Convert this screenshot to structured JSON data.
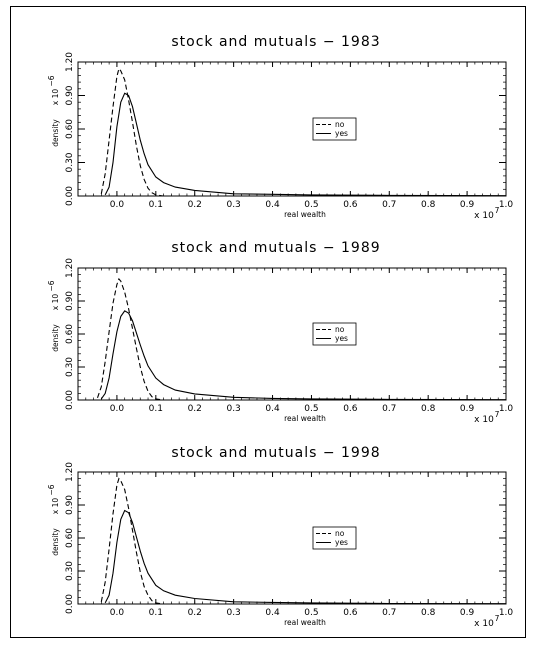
{
  "chart_data": [
    {
      "type": "line",
      "title": "stock and mutuals − 1983",
      "xlabel": "real wealth",
      "ylabel": "density",
      "y_multiplier": "x 10",
      "y_exponent": "−6",
      "x_multiplier": "x 10",
      "x_exponent": "7",
      "xlim": [
        -0.1,
        1.0
      ],
      "ylim": [
        0.0,
        1.2
      ],
      "xticks": [
        "0.0",
        "0.1",
        "0.2",
        "0.3",
        "0.4",
        "0.5",
        "0.6",
        "0.7",
        "0.8",
        "0.9",
        "1.0"
      ],
      "yticks": [
        "0.00",
        "0.30",
        "0.60",
        "0.90",
        "1.20"
      ],
      "legend": {
        "placement": "center-right"
      },
      "series": [
        {
          "name": "no",
          "style": "dashed",
          "x": [
            -0.04,
            -0.03,
            -0.02,
            -0.01,
            0.0,
            0.005,
            0.01,
            0.02,
            0.03,
            0.04,
            0.05,
            0.06,
            0.07,
            0.08,
            0.09,
            0.1,
            0.12
          ],
          "y": [
            0.02,
            0.2,
            0.5,
            0.8,
            1.07,
            1.14,
            1.12,
            1.04,
            0.86,
            0.66,
            0.45,
            0.27,
            0.15,
            0.07,
            0.03,
            0.01,
            0.0
          ]
        },
        {
          "name": "yes",
          "style": "solid",
          "x": [
            -0.03,
            -0.02,
            -0.01,
            0.0,
            0.01,
            0.02,
            0.03,
            0.04,
            0.05,
            0.06,
            0.07,
            0.08,
            0.1,
            0.12,
            0.15,
            0.2,
            0.3,
            0.4,
            0.5,
            0.7,
            1.0
          ],
          "y": [
            0.01,
            0.08,
            0.3,
            0.62,
            0.84,
            0.92,
            0.9,
            0.8,
            0.65,
            0.5,
            0.38,
            0.28,
            0.17,
            0.12,
            0.08,
            0.05,
            0.02,
            0.015,
            0.01,
            0.005,
            0.003
          ]
        }
      ]
    },
    {
      "type": "line",
      "title": "stock and mutuals − 1989",
      "xlabel": "real wealth",
      "ylabel": "density",
      "y_multiplier": "x 10",
      "y_exponent": "−6",
      "x_multiplier": "x 10",
      "x_exponent": "7",
      "xlim": [
        -0.1,
        1.0
      ],
      "ylim": [
        0.0,
        1.2
      ],
      "xticks": [
        "0.0",
        "0.1",
        "0.2",
        "0.3",
        "0.4",
        "0.5",
        "0.6",
        "0.7",
        "0.8",
        "0.9",
        "1.0"
      ],
      "yticks": [
        "0.00",
        "0.30",
        "0.60",
        "0.90",
        "1.20"
      ],
      "legend": {
        "placement": "center-right"
      },
      "series": [
        {
          "name": "no",
          "style": "dashed",
          "x": [
            -0.05,
            -0.04,
            -0.03,
            -0.02,
            -0.01,
            0.0,
            0.005,
            0.01,
            0.02,
            0.03,
            0.04,
            0.05,
            0.06,
            0.07,
            0.08,
            0.09,
            0.1,
            0.12
          ],
          "y": [
            0.02,
            0.12,
            0.35,
            0.62,
            0.88,
            1.05,
            1.1,
            1.08,
            0.98,
            0.83,
            0.65,
            0.47,
            0.3,
            0.17,
            0.08,
            0.03,
            0.01,
            0.0
          ]
        },
        {
          "name": "yes",
          "style": "solid",
          "x": [
            -0.04,
            -0.03,
            -0.02,
            -0.01,
            0.0,
            0.01,
            0.02,
            0.03,
            0.04,
            0.05,
            0.06,
            0.07,
            0.08,
            0.1,
            0.12,
            0.15,
            0.2,
            0.3,
            0.4,
            0.5,
            0.7,
            1.0
          ],
          "y": [
            0.01,
            0.06,
            0.2,
            0.42,
            0.62,
            0.76,
            0.81,
            0.79,
            0.72,
            0.61,
            0.5,
            0.4,
            0.31,
            0.2,
            0.14,
            0.09,
            0.055,
            0.025,
            0.015,
            0.01,
            0.005,
            0.003
          ]
        }
      ]
    },
    {
      "type": "line",
      "title": "stock and mutuals − 1998",
      "xlabel": "real wealth",
      "ylabel": "density",
      "y_multiplier": "x 10",
      "y_exponent": "−6",
      "x_multiplier": "x 10",
      "x_exponent": "7",
      "xlim": [
        -0.1,
        1.0
      ],
      "ylim": [
        0.0,
        1.2
      ],
      "xticks": [
        "0.0",
        "0.1",
        "0.2",
        "0.3",
        "0.4",
        "0.5",
        "0.6",
        "0.7",
        "0.8",
        "0.9",
        "1.0"
      ],
      "yticks": [
        "0.00",
        "0.30",
        "0.60",
        "0.90",
        "1.20"
      ],
      "legend": {
        "placement": "center-right"
      },
      "series": [
        {
          "name": "no",
          "style": "dashed",
          "x": [
            -0.04,
            -0.03,
            -0.02,
            -0.01,
            0.0,
            0.005,
            0.01,
            0.02,
            0.03,
            0.04,
            0.05,
            0.06,
            0.07,
            0.08,
            0.09,
            0.1,
            0.12
          ],
          "y": [
            0.02,
            0.2,
            0.5,
            0.82,
            1.08,
            1.14,
            1.12,
            1.04,
            0.87,
            0.67,
            0.47,
            0.29,
            0.16,
            0.08,
            0.03,
            0.01,
            0.0
          ]
        },
        {
          "name": "yes",
          "style": "solid",
          "x": [
            -0.03,
            -0.02,
            -0.01,
            0.0,
            0.01,
            0.02,
            0.03,
            0.04,
            0.05,
            0.06,
            0.07,
            0.08,
            0.1,
            0.12,
            0.15,
            0.2,
            0.3,
            0.4,
            0.5,
            0.7,
            1.0
          ],
          "y": [
            0.01,
            0.08,
            0.28,
            0.56,
            0.77,
            0.85,
            0.83,
            0.74,
            0.61,
            0.48,
            0.37,
            0.28,
            0.17,
            0.12,
            0.08,
            0.05,
            0.02,
            0.015,
            0.01,
            0.005,
            0.003
          ]
        }
      ]
    }
  ]
}
